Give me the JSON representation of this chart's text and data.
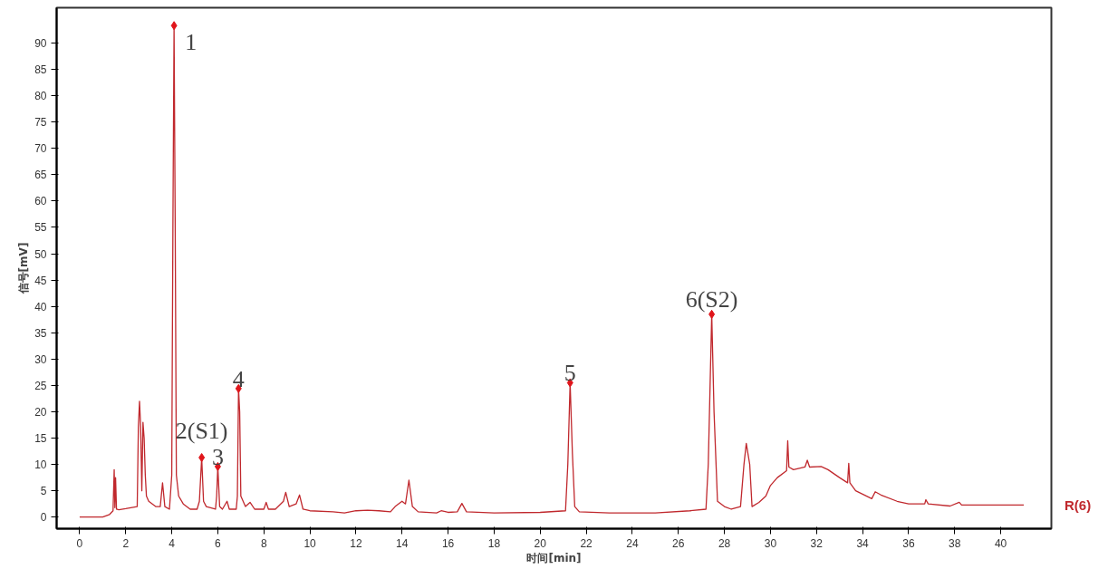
{
  "chart_data": {
    "type": "line",
    "xlabel": "时间[min]",
    "ylabel": "信号[mV]",
    "xlim": [
      -1,
      42.2
    ],
    "ylim": [
      -2.2,
      96.7
    ],
    "xticks": [
      0,
      2,
      4,
      6,
      8,
      10,
      12,
      14,
      16,
      18,
      20,
      22,
      24,
      26,
      28,
      30,
      32,
      34,
      36,
      38,
      40
    ],
    "yticks": [
      0,
      5,
      10,
      15,
      20,
      25,
      30,
      35,
      40,
      45,
      50,
      55,
      60,
      65,
      70,
      75,
      80,
      85,
      90
    ],
    "grid": false,
    "legend": false,
    "series": [
      {
        "name": "R(6)",
        "color": "#c0282d",
        "marker": "none",
        "x": [
          0,
          1.0,
          1.3,
          1.45,
          1.5,
          1.53,
          1.56,
          1.6,
          1.7,
          2.0,
          2.5,
          2.55,
          2.6,
          2.65,
          2.7,
          2.75,
          2.8,
          2.85,
          2.9,
          3.0,
          3.3,
          3.5,
          3.6,
          3.7,
          3.9,
          4.0,
          4.05,
          4.1,
          4.15,
          4.2,
          4.3,
          4.5,
          4.8,
          5.1,
          5.2,
          5.3,
          5.38,
          5.5,
          5.9,
          5.95,
          6.0,
          6.08,
          6.2,
          6.4,
          6.5,
          6.8,
          6.85,
          6.9,
          6.95,
          7.0,
          7.2,
          7.4,
          7.6,
          8.0,
          8.1,
          8.2,
          8.5,
          8.85,
          8.95,
          9.1,
          9.4,
          9.55,
          9.7,
          10,
          11,
          11.5,
          12,
          12.5,
          13,
          13.5,
          13.7,
          14.0,
          14.15,
          14.3,
          14.45,
          14.7,
          15.5,
          15.7,
          16,
          16.4,
          16.6,
          16.8,
          18,
          20,
          21.1,
          21.2,
          21.3,
          21.4,
          21.5,
          21.7,
          23,
          25,
          26.5,
          27.2,
          27.3,
          27.45,
          27.55,
          27.7,
          28.0,
          28.3,
          28.7,
          28.85,
          28.95,
          29.1,
          29.2,
          29.5,
          29.8,
          30,
          30.3,
          30.7,
          30.75,
          30.8,
          31,
          31.5,
          31.6,
          31.7,
          32.2,
          32.5,
          33,
          33.35,
          33.4,
          33.45,
          33.7,
          34.4,
          34.55,
          34.8,
          35.5,
          36,
          36.7,
          36.75,
          36.85,
          37.8,
          38.2,
          38.3,
          41
        ],
        "values": [
          0,
          0,
          0.5,
          1.2,
          9,
          1.8,
          7.5,
          1.5,
          1.4,
          1.6,
          2,
          17,
          22,
          17,
          5,
          18,
          15,
          8,
          4,
          3,
          2,
          2,
          6.5,
          2,
          1.5,
          8,
          55,
          93.3,
          55,
          8,
          4,
          2.5,
          1.5,
          1.5,
          3,
          11.3,
          3,
          2,
          1.5,
          4,
          9.6,
          2,
          1.5,
          3,
          1.5,
          1.5,
          4,
          24.4,
          20,
          4,
          2,
          2.8,
          1.5,
          1.5,
          2.8,
          1.5,
          1.5,
          3,
          4.7,
          2,
          2.5,
          4.2,
          1.5,
          1.2,
          1.0,
          0.8,
          1.2,
          1.3,
          1.2,
          1.0,
          2,
          3,
          2.5,
          7,
          2,
          1,
          0.8,
          1.2,
          0.9,
          1,
          2.6,
          1,
          0.8,
          0.9,
          1.2,
          10,
          25.5,
          12,
          2,
          1,
          0.8,
          0.8,
          1.2,
          1.5,
          10,
          38.5,
          20,
          3,
          2,
          1.5,
          2,
          10,
          14,
          10,
          2,
          2.8,
          4,
          6,
          7.5,
          8.8,
          14.5,
          9.5,
          9,
          9.5,
          10.8,
          9.5,
          9.6,
          9,
          7.5,
          6.5,
          10.2,
          6.5,
          5,
          3.5,
          4.8,
          4.2,
          3,
          2.5,
          2.5,
          3.3,
          2.5,
          2.1,
          2.8,
          2.3,
          2.3
        ]
      },
      {
        "type": "scatter",
        "color": "#e0151b",
        "marker": "diamond",
        "x": [
          4.1,
          5.3,
          6.0,
          6.9,
          21.3,
          27.45
        ],
        "values": [
          93.3,
          11.3,
          9.6,
          24.4,
          25.5,
          38.5
        ]
      }
    ],
    "annotations": [
      {
        "text": "1",
        "x": 4.1,
        "y": 93.3
      },
      {
        "text": "2(S1)",
        "x": 5.3,
        "y": 11.3
      },
      {
        "text": "3",
        "x": 6.0,
        "y": 9.6
      },
      {
        "text": "4",
        "x": 6.9,
        "y": 24.4
      },
      {
        "text": "5",
        "x": 21.3,
        "y": 25.5
      },
      {
        "text": "6(S2)",
        "x": 27.45,
        "y": 38.5
      }
    ]
  }
}
